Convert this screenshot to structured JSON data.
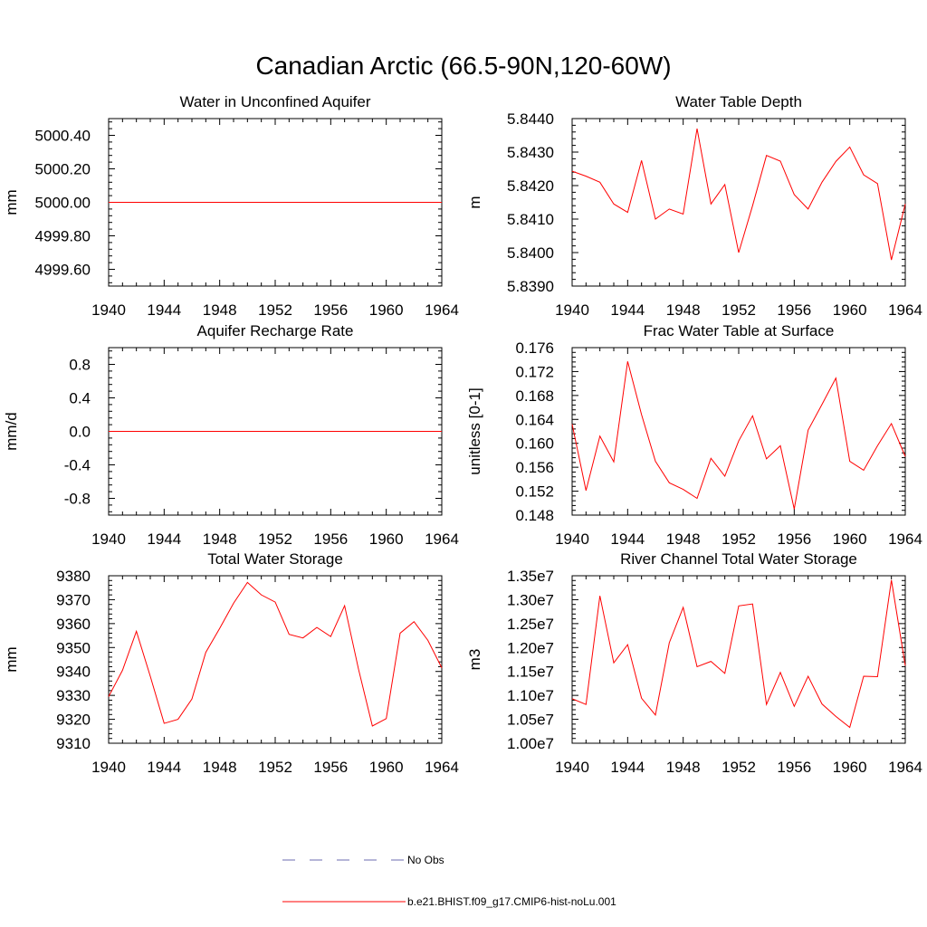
{
  "page_title": "Canadian Arctic (66.5-90N,120-60W)",
  "colors": {
    "model": "#ff0000",
    "obs": "#6b6bb0",
    "axis": "#000000"
  },
  "legend": {
    "obs_label": "No Obs",
    "model_label": "b.e21.BHIST.f09_g17.CMIP6-hist-noLu.001"
  },
  "chart_data": [
    {
      "type": "line",
      "title": "Water in Unconfined Aquifer",
      "xlabel": "",
      "ylabel": "mm",
      "xlim": [
        1940,
        1964
      ],
      "ylim": [
        4999.5,
        5000.5
      ],
      "xticks": [
        1940,
        1944,
        1948,
        1952,
        1956,
        1960,
        1964
      ],
      "yticks": [
        4999.6,
        4999.8,
        5000.0,
        5000.2,
        5000.4
      ],
      "ytick_labels": [
        "4999.60",
        "4999.80",
        "5000.00",
        "5000.20",
        "5000.40"
      ],
      "x": [
        1940,
        1941,
        1942,
        1943,
        1944,
        1945,
        1946,
        1947,
        1948,
        1949,
        1950,
        1951,
        1952,
        1953,
        1954,
        1955,
        1956,
        1957,
        1958,
        1959,
        1960,
        1961,
        1962,
        1963,
        1964
      ],
      "series": [
        {
          "name": "b.e21.BHIST.f09_g17.CMIP6-hist-noLu.001",
          "values": [
            5000,
            5000,
            5000,
            5000,
            5000,
            5000,
            5000,
            5000,
            5000,
            5000,
            5000,
            5000,
            5000,
            5000,
            5000,
            5000,
            5000,
            5000,
            5000,
            5000,
            5000,
            5000,
            5000,
            5000,
            5000
          ]
        }
      ]
    },
    {
      "type": "line",
      "title": "Water Table Depth",
      "xlabel": "",
      "ylabel": "m",
      "xlim": [
        1940,
        1964
      ],
      "ylim": [
        5.839,
        5.844
      ],
      "xticks": [
        1940,
        1944,
        1948,
        1952,
        1956,
        1960,
        1964
      ],
      "yticks": [
        5.839,
        5.84,
        5.841,
        5.842,
        5.843,
        5.844
      ],
      "ytick_labels": [
        "5.8390",
        "5.8400",
        "5.8410",
        "5.8420",
        "5.8430",
        "5.8440"
      ],
      "x": [
        1940,
        1941,
        1942,
        1943,
        1944,
        1945,
        1946,
        1947,
        1948,
        1949,
        1950,
        1951,
        1952,
        1953,
        1954,
        1955,
        1956,
        1957,
        1958,
        1959,
        1960,
        1961,
        1962,
        1963,
        1964
      ],
      "series": [
        {
          "name": "b.e21.BHIST.f09_g17.CMIP6-hist-noLu.001",
          "values": [
            5.84243,
            5.84228,
            5.8421,
            5.84145,
            5.8412,
            5.84275,
            5.841,
            5.8413,
            5.84115,
            5.8437,
            5.84145,
            5.84203,
            5.84,
            5.8414,
            5.8429,
            5.84273,
            5.84173,
            5.8413,
            5.8421,
            5.84272,
            5.84315,
            5.84232,
            5.84206,
            5.83978,
            5.84145
          ]
        }
      ]
    },
    {
      "type": "line",
      "title": "Aquifer Recharge Rate",
      "xlabel": "",
      "ylabel": "mm/d",
      "xlim": [
        1940,
        1964
      ],
      "ylim": [
        -1.0,
        1.0
      ],
      "xticks": [
        1940,
        1944,
        1948,
        1952,
        1956,
        1960,
        1964
      ],
      "yticks": [
        -0.8,
        -0.4,
        0.0,
        0.4,
        0.8
      ],
      "ytick_labels": [
        "-0.8",
        "-0.4",
        "0.0",
        "0.4",
        "0.8"
      ],
      "x": [
        1940,
        1941,
        1942,
        1943,
        1944,
        1945,
        1946,
        1947,
        1948,
        1949,
        1950,
        1951,
        1952,
        1953,
        1954,
        1955,
        1956,
        1957,
        1958,
        1959,
        1960,
        1961,
        1962,
        1963,
        1964
      ],
      "series": [
        {
          "name": "b.e21.BHIST.f09_g17.CMIP6-hist-noLu.001",
          "values": [
            0,
            0,
            0,
            0,
            0,
            0,
            0,
            0,
            0,
            0,
            0,
            0,
            0,
            0,
            0,
            0,
            0,
            0,
            0,
            0,
            0,
            0,
            0,
            0,
            0
          ]
        }
      ]
    },
    {
      "type": "line",
      "title": "Frac Water Table at Surface",
      "xlabel": "",
      "ylabel": "unitless [0-1]",
      "xlim": [
        1940,
        1964
      ],
      "ylim": [
        0.148,
        0.176
      ],
      "xticks": [
        1940,
        1944,
        1948,
        1952,
        1956,
        1960,
        1964
      ],
      "yticks": [
        0.148,
        0.152,
        0.156,
        0.16,
        0.164,
        0.168,
        0.172,
        0.176
      ],
      "ytick_labels": [
        "0.148",
        "0.152",
        "0.156",
        "0.160",
        "0.164",
        "0.168",
        "0.172",
        "0.176"
      ],
      "x": [
        1940,
        1941,
        1942,
        1943,
        1944,
        1945,
        1946,
        1947,
        1948,
        1949,
        1950,
        1951,
        1952,
        1953,
        1954,
        1955,
        1956,
        1957,
        1958,
        1959,
        1960,
        1961,
        1962,
        1963,
        1964
      ],
      "series": [
        {
          "name": "b.e21.BHIST.f09_g17.CMIP6-hist-noLu.001",
          "values": [
            0.1632,
            0.1521,
            0.1612,
            0.1569,
            0.1737,
            0.1648,
            0.157,
            0.1534,
            0.1523,
            0.1508,
            0.1575,
            0.1545,
            0.1604,
            0.1646,
            0.1574,
            0.1596,
            0.149,
            0.1622,
            0.1665,
            0.1709,
            0.157,
            0.1555,
            0.1596,
            0.1633,
            0.1578
          ]
        }
      ]
    },
    {
      "type": "line",
      "title": "Total Water Storage",
      "xlabel": "",
      "ylabel": "mm",
      "xlim": [
        1940,
        1964
      ],
      "ylim": [
        9310,
        9380
      ],
      "xticks": [
        1940,
        1944,
        1948,
        1952,
        1956,
        1960,
        1964
      ],
      "yticks": [
        9310,
        9320,
        9330,
        9340,
        9350,
        9360,
        9370,
        9380
      ],
      "ytick_labels": [
        "9310",
        "9320",
        "9330",
        "9340",
        "9350",
        "9360",
        "9370",
        "9380"
      ],
      "x": [
        1940,
        1941,
        1942,
        1943,
        1944,
        1945,
        1946,
        1947,
        1948,
        1949,
        1950,
        1951,
        1952,
        1953,
        1954,
        1955,
        1956,
        1957,
        1958,
        1959,
        1960,
        1961,
        1962,
        1963,
        1964
      ],
      "series": [
        {
          "name": "b.e21.BHIST.f09_g17.CMIP6-hist-noLu.001",
          "values": [
            9329.5,
            9340.5,
            9356.8,
            9338,
            9318.3,
            9320,
            9328.5,
            9348,
            9358,
            9368.5,
            9377.2,
            9372,
            9369,
            9355.5,
            9354,
            9358.4,
            9354.6,
            9367.5,
            9341,
            9317.2,
            9320.3,
            9356,
            9360.8,
            9353,
            9341.5
          ]
        }
      ]
    },
    {
      "type": "line",
      "title": "River Channel Total Water Storage",
      "xlabel": "",
      "ylabel": "m3",
      "xlim": [
        1940,
        1964
      ],
      "ylim": [
        10000000,
        13500000
      ],
      "xticks": [
        1940,
        1944,
        1948,
        1952,
        1956,
        1960,
        1964
      ],
      "yticks": [
        10000000,
        10500000,
        11000000,
        11500000,
        12000000,
        12500000,
        13000000,
        13500000
      ],
      "ytick_labels": [
        "1.00e7",
        "1.05e7",
        "1.10e7",
        "1.15e7",
        "1.20e7",
        "1.25e7",
        "1.30e7",
        "1.35e7"
      ],
      "x": [
        1940,
        1941,
        1942,
        1943,
        1944,
        1945,
        1946,
        1947,
        1948,
        1949,
        1950,
        1951,
        1952,
        1953,
        1954,
        1955,
        1956,
        1957,
        1958,
        1959,
        1960,
        1961,
        1962,
        1963,
        1964
      ],
      "series": [
        {
          "name": "b.e21.BHIST.f09_g17.CMIP6-hist-noLu.001",
          "values": [
            10930000,
            10810000,
            13080000,
            11680000,
            12060000,
            10940000,
            10590000,
            12100000,
            12840000,
            11600000,
            11710000,
            11460000,
            12870000,
            12910000,
            10810000,
            11480000,
            10770000,
            11400000,
            10820000,
            10560000,
            10330000,
            11400000,
            11390000,
            13410000,
            11620000
          ]
        }
      ]
    }
  ]
}
